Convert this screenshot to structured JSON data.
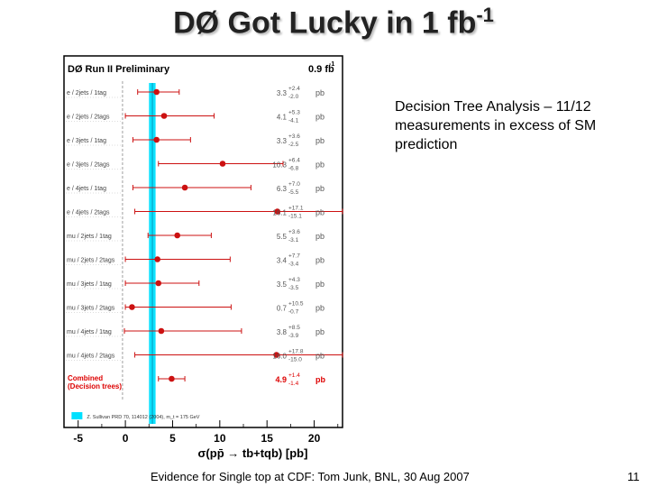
{
  "slide": {
    "title_main": "DØ Got Lucky in 1 fb",
    "title_sup": "-1",
    "note": "Decision Tree Analysis – 11/12 measurements in excess of SM prediction",
    "footer": "Evidence for Single top at CDF: Tom Junk, BNL, 30 Aug 2007",
    "page_number": "11"
  },
  "chart_data": {
    "type": "scatter",
    "header_left": "DØ Run II Preliminary",
    "header_right": "0.9 fb",
    "header_right_sup": "-1",
    "xlabel": "σ(pp̄ → tb+tqb) [pb]",
    "xlim": [
      -6.5,
      23
    ],
    "xticks": [
      -5,
      0,
      5,
      10,
      15,
      20
    ],
    "sm_prediction": {
      "center": 2.86,
      "low": 2.5,
      "high": 3.2,
      "color": "#00e0ff"
    },
    "legend_text": "Z. Sullivan PRD 70, 114012 (2004), m_t = 175 GeV",
    "unit": "pb",
    "point_color": "#cc1111",
    "measurements": [
      {
        "label": "e / 2jets / 1tag",
        "value": 3.3,
        "value_text": "3.3",
        "plus": "+2.4",
        "minus": "-2.0"
      },
      {
        "label": "e / 2jets / 2tags",
        "value": 4.1,
        "value_text": "4.1",
        "plus": "+5.3",
        "minus": "-4.1"
      },
      {
        "label": "e / 3jets / 1tag",
        "value": 3.3,
        "value_text": "3.3",
        "plus": "+3.6",
        "minus": "-2.5"
      },
      {
        "label": "e / 3jets / 2tags",
        "value": 10.3,
        "value_text": "10.3",
        "plus": "+6.4",
        "minus": "-6.8"
      },
      {
        "label": "e / 4jets / 1tag",
        "value": 6.3,
        "value_text": "6.3",
        "plus": "+7.0",
        "minus": "-5.5"
      },
      {
        "label": "e / 4jets / 2tags",
        "value": 16.1,
        "value_text": "16.1",
        "plus": "+17.1",
        "minus": "-15.1"
      },
      {
        "label": "mu / 2jets / 1tag",
        "value": 5.5,
        "value_text": "5.5",
        "plus": "+3.6",
        "minus": "-3.1"
      },
      {
        "label": "mu / 2jets / 2tags",
        "value": 3.4,
        "value_text": "3.4",
        "plus": "+7.7",
        "minus": "-3.4"
      },
      {
        "label": "mu / 3jets / 1tag",
        "value": 3.5,
        "value_text": "3.5",
        "plus": "+4.3",
        "minus": "-3.5"
      },
      {
        "label": "mu / 3jets / 2tags",
        "value": 0.7,
        "value_text": "0.7",
        "plus": "+10.5",
        "minus": "-0.7"
      },
      {
        "label": "mu / 4jets / 1tag",
        "value": 3.8,
        "value_text": "3.8",
        "plus": "+8.5",
        "minus": "-3.9"
      },
      {
        "label": "mu / 4jets / 2tags",
        "value": 16.0,
        "value_text": "16.0",
        "plus": "+17.8",
        "minus": "-15.0"
      }
    ],
    "combined": {
      "label_line1": "Combined",
      "label_line2": "(Decision trees)",
      "value": 4.9,
      "value_text": "4.9",
      "plus": "+1.4",
      "minus": "-1.4"
    }
  }
}
